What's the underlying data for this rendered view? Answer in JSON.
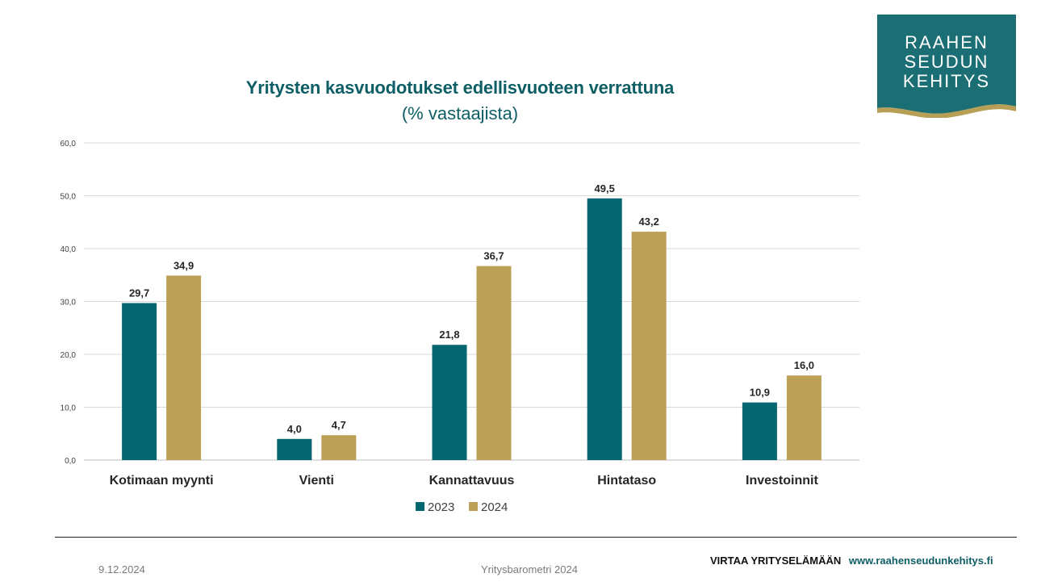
{
  "title": "Yritysten kasvuodotukset edellisvuoteen verrattuna",
  "subtitle": "(% vastaajista)",
  "logo": {
    "line1": "RAAHEN",
    "line2": "SEUDUN",
    "line3": "KEHITYS",
    "bg": "#1a6e74",
    "wave": "#b79f55"
  },
  "footer": {
    "date": "9.12.2024",
    "center": "Yritysbarometri 2024",
    "tagline": "VIRTAA YRITYSELÄMÄÄN",
    "website": "www.raahenseudunkehitys.fi"
  },
  "colors": {
    "series2023": "#036670",
    "series2024": "#bca056",
    "title": "#0e5e66",
    "grid": "#d9d9d9"
  },
  "chart_data": {
    "type": "bar",
    "title": "Yritysten kasvuodotukset edellisvuoteen verrattuna",
    "subtitle": "(% vastaajista)",
    "categories": [
      "Kotimaan myynti",
      "Vienti",
      "Kannattavuus",
      "Hintataso",
      "Investoinnit"
    ],
    "series": [
      {
        "name": "2023",
        "values": [
          29.7,
          4.0,
          21.8,
          49.5,
          10.9
        ]
      },
      {
        "name": "2024",
        "values": [
          34.9,
          4.7,
          36.7,
          43.2,
          16.0
        ]
      }
    ],
    "ylim": [
      0,
      60
    ],
    "yticks": [
      "0,0",
      "10,0",
      "20,0",
      "30,0",
      "40,0",
      "50,0",
      "60,0"
    ],
    "data_labels": [
      [
        "29,7",
        "4,0",
        "21,8",
        "49,5",
        "10,9"
      ],
      [
        "34,9",
        "4,7",
        "36,7",
        "43,2",
        "16,0"
      ]
    ],
    "grid": true,
    "legend": "bottom"
  }
}
